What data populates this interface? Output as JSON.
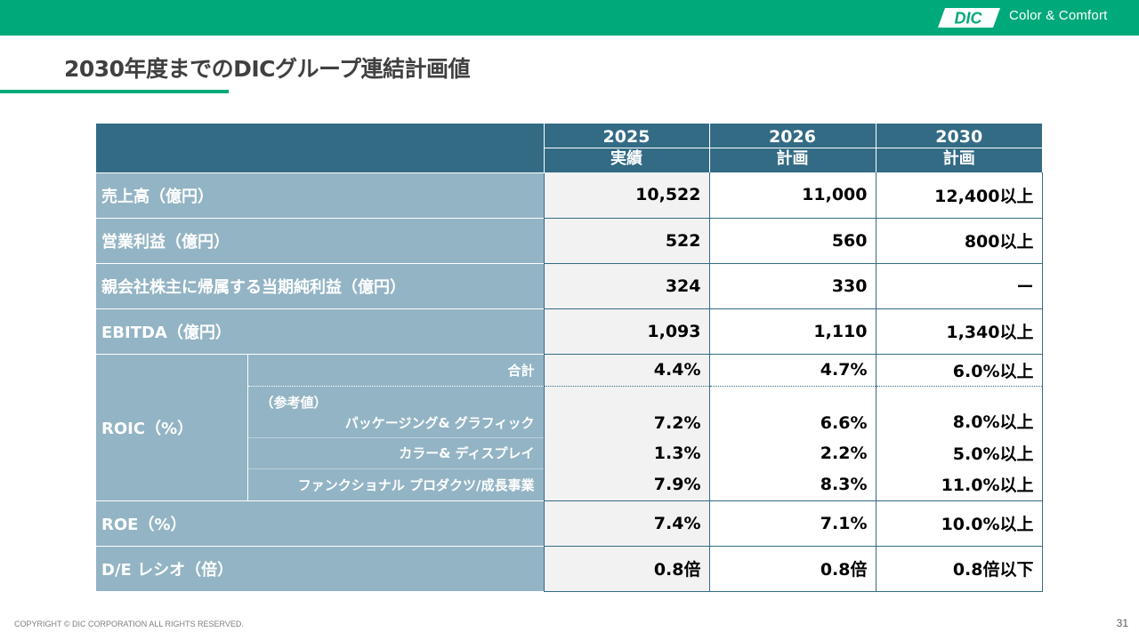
{
  "header": {
    "brand_mark": "DIC",
    "tagline": "Color & Comfort",
    "brand_color": "#00a97a",
    "table_header_color": "#336b85",
    "label_color": "#93b4c4"
  },
  "page_title": "2030年度までのDICグループ連結計画値",
  "table": {
    "columns": [
      {
        "year": "2025",
        "type": "実績"
      },
      {
        "year": "2026",
        "type": "計画"
      },
      {
        "year": "2030",
        "type": "計画"
      }
    ],
    "rows": {
      "sales": {
        "label": "売上高（億円）",
        "values": [
          "10,522",
          "11,000",
          "12,400以上"
        ]
      },
      "op_income": {
        "label": "営業利益（億円）",
        "values": [
          "522",
          "560",
          "800以上"
        ]
      },
      "net_income": {
        "label": "親会社株主に帰属する当期純利益（億円）",
        "values": [
          "324",
          "330",
          "ー"
        ]
      },
      "ebitda": {
        "label": "EBITDA（億円）",
        "values": [
          "1,093",
          "1,110",
          "1,340以上"
        ]
      },
      "roic": {
        "label": "ROIC（%）",
        "total": {
          "label": "合計",
          "values": [
            "4.4%",
            "4.7%",
            "6.0%以上"
          ]
        },
        "reference_label": "（参考値）",
        "packaging": {
          "label": "パッケージング& グラフィック",
          "values": [
            "7.2%",
            "6.6%",
            "8.0%以上"
          ]
        },
        "color_display": {
          "label": "カラー& ディスプレイ",
          "values": [
            "1.3%",
            "2.2%",
            "5.0%以上"
          ]
        },
        "functional": {
          "label": "ファンクショナル プロダクツ/成長事業",
          "values": [
            "7.9%",
            "8.3%",
            "11.0%以上"
          ]
        }
      },
      "roe": {
        "label": "ROE（%）",
        "values": [
          "7.4%",
          "7.1%",
          "10.0%以上"
        ]
      },
      "de_ratio": {
        "label": "D/E レシオ（倍）",
        "values": [
          "0.8倍",
          "0.8倍",
          "0.8倍以下"
        ]
      }
    }
  },
  "footer": {
    "copyright": "COPYRIGHT © DIC CORPORATION ALL RIGHTS RESERVED.",
    "page_number": "31"
  }
}
